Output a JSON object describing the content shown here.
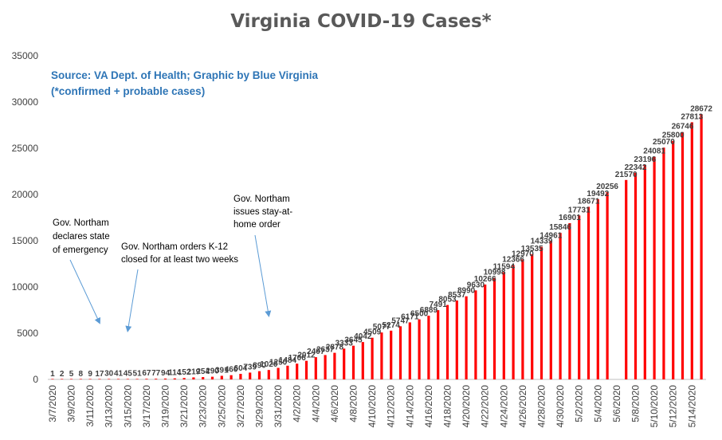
{
  "chart_data": {
    "type": "bar",
    "title": "Virginia COVID-19 Cases*",
    "subtitle_lines": [
      "Source: VA Dept. of Health; Graphic by Blue Virginia",
      "(*confirmed + probable cases)"
    ],
    "xlabel": "",
    "ylabel": "",
    "ylim": [
      0,
      35000
    ],
    "yticks": [
      0,
      5000,
      10000,
      15000,
      20000,
      25000,
      30000,
      35000
    ],
    "ytick_labels": [
      "0",
      "5000",
      "10000",
      "15000",
      "20000",
      "25000",
      "30000",
      "35000"
    ],
    "grid": false,
    "legend": "none",
    "bar_color": "#FF0000",
    "categories": [
      "3/7/2020",
      "3/8/2020",
      "3/9/2020",
      "3/10/2020",
      "3/11/2020",
      "3/12/2020",
      "3/13/2020",
      "3/14/2020",
      "3/15/2020",
      "3/16/2020",
      "3/17/2020",
      "3/18/2020",
      "3/19/2020",
      "3/20/2020",
      "3/21/2020",
      "3/22/2020",
      "3/23/2020",
      "3/24/2020",
      "3/25/2020",
      "3/26/2020",
      "3/27/2020",
      "3/28/2020",
      "3/29/2020",
      "3/30/2020",
      "3/31/2020",
      "4/1/2020",
      "4/2/2020",
      "4/3/2020",
      "4/4/2020",
      "4/5/2020",
      "4/6/2020",
      "4/7/2020",
      "4/8/2020",
      "4/9/2020",
      "4/10/2020",
      "4/11/2020",
      "4/12/2020",
      "4/13/2020",
      "4/14/2020",
      "4/15/2020",
      "4/16/2020",
      "4/17/2020",
      "4/18/2020",
      "4/19/2020",
      "4/20/2020",
      "4/21/2020",
      "4/22/2020",
      "4/23/2020",
      "4/24/2020",
      "4/25/2020",
      "4/26/2020",
      "4/27/2020",
      "4/28/2020",
      "4/29/2020",
      "4/30/2020",
      "5/1/2020",
      "5/2/2020",
      "5/3/2020",
      "5/4/2020",
      "5/5/2020",
      "5/6/2020",
      "5/7/2020",
      "5/8/2020",
      "5/9/2020",
      "5/10/2020",
      "5/11/2020",
      "5/12/2020",
      "5/13/2020",
      "5/14/2020",
      "5/15/2020"
    ],
    "x_tick_labels": [
      "3/7/2020",
      "3/9/2020",
      "3/11/2020",
      "3/13/2020",
      "3/15/2020",
      "3/17/2020",
      "3/19/2020",
      "3/21/2020",
      "3/23/2020",
      "3/25/2020",
      "3/27/2020",
      "3/29/2020",
      "3/31/2020",
      "4/2/2020",
      "4/4/2020",
      "4/6/2020",
      "4/8/2020",
      "4/10/2020",
      "4/12/2020",
      "4/14/2020",
      "4/16/2020",
      "4/18/2020",
      "4/20/2020",
      "4/22/2020",
      "4/24/2020",
      "4/26/2020",
      "4/28/2020",
      "4/30/2020",
      "5/2/2020",
      "5/4/2020",
      "5/6/2020",
      "5/8/2020",
      "5/10/2020",
      "5/12/2020",
      "5/14/2020"
    ],
    "values": [
      1,
      2,
      5,
      8,
      9,
      17,
      30,
      41,
      45,
      51,
      67,
      77,
      94,
      114,
      152,
      219,
      254,
      290,
      391,
      460,
      604,
      739,
      890,
      1020,
      1250,
      1484,
      1706,
      2012,
      2407,
      2637,
      2878,
      3333,
      3645,
      4042,
      4509,
      5077,
      5274,
      5747,
      6171,
      6500,
      6889,
      7491,
      8053,
      8537,
      8990,
      9630,
      10266,
      10998,
      11594,
      12366,
      12970,
      13535,
      14339,
      14961,
      15846,
      16901,
      17731,
      18671,
      19492,
      20256,
      null,
      21570,
      22342,
      23196,
      24081,
      25070,
      25800,
      26746,
      27813,
      28672
    ],
    "annotations": [
      {
        "lines": [
          "Gov. Northam",
          "declares state",
          "of emergency"
        ],
        "points_to": "3/12/2020"
      },
      {
        "lines": [
          "Gov. Northam orders K-12",
          "closed  for at least two weeks"
        ],
        "points_to": "3/15/2020"
      },
      {
        "lines": [
          "Gov. Northam",
          "issues stay-at-",
          "home order"
        ],
        "points_to": "3/30/2020"
      }
    ]
  }
}
